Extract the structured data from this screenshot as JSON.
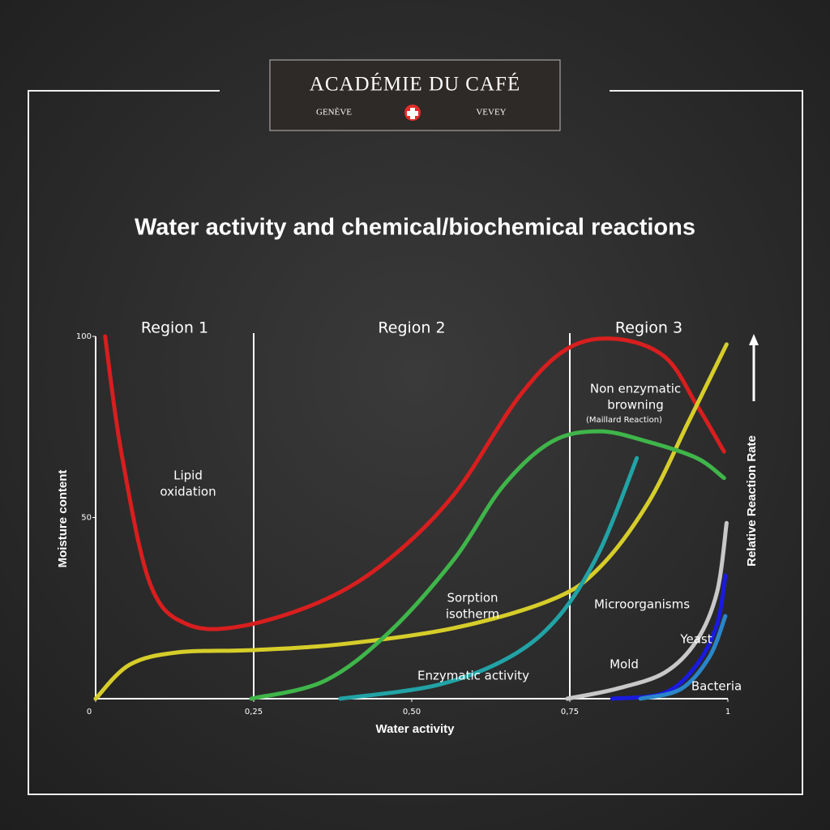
{
  "header": {
    "brand": "ACADÉMIE DU CAFÉ",
    "left_place": "GENÈVE",
    "right_place": "VEVEY"
  },
  "chart_data": {
    "type": "line",
    "title": "Water activity and chemical/biochemical reactions",
    "x_label": "Water activity",
    "y_label": "Moisture content",
    "y2_label": "Relative Reaction Rate",
    "xlim": [
      0,
      1
    ],
    "ylim": [
      0,
      100
    ],
    "xticks": [
      0,
      {
        "value": 0.25,
        "label": "0,25"
      },
      {
        "value": 0.5,
        "label": "0,50"
      },
      {
        "value": 0.75,
        "label": "0,75"
      },
      1
    ],
    "yticks": [
      50,
      100
    ],
    "regions": [
      {
        "label": "Region 1",
        "color": "#d8cc2c",
        "from": 0,
        "to": 0.25
      },
      {
        "label": "Region 2",
        "color": "#d42020",
        "from": 0.25,
        "to": 0.75
      },
      {
        "label": "Region 3",
        "color": "#27a3a8",
        "from": 0.75,
        "to": 1
      }
    ],
    "series": [
      {
        "color": "#d81e1e",
        "x": [
          0.015,
          0.041,
          0.086,
          0.144,
          0.233,
          0.362,
          0.464,
          0.567,
          0.669,
          0.746,
          0.823,
          0.9,
          0.951,
          0.994
        ],
        "values": [
          100,
          67.6,
          31.8,
          20.6,
          20.1,
          27.3,
          38.5,
          56.4,
          83.2,
          96.6,
          99.3,
          94.4,
          81,
          68.2
        ]
      },
      {
        "color": "#d6cd2a",
        "x": [
          0,
          0.054,
          0.131,
          0.246,
          0.387,
          0.567,
          0.721,
          0.797,
          0.874,
          0.938,
          0.998
        ],
        "values": [
          0,
          9.4,
          12.8,
          13.4,
          15,
          19.5,
          27.3,
          36.2,
          54.1,
          76.5,
          97.8
        ]
      },
      {
        "color": "#3fb54a",
        "x": [
          0.246,
          0.362,
          0.464,
          0.567,
          0.644,
          0.721,
          0.797,
          0.874,
          0.951,
          0.994
        ],
        "values": [
          0,
          4.9,
          18.3,
          38.5,
          58.6,
          70.9,
          73.8,
          70.9,
          66.4,
          60.9
        ]
      },
      {
        "color": "#21a3a6",
        "x": [
          0.387,
          0.541,
          0.656,
          0.733,
          0.797,
          0.856
        ],
        "values": [
          0,
          3.8,
          11.6,
          22.8,
          40.7,
          66.4
        ]
      },
      {
        "color": "#c8c8c8",
        "x": [
          0.746,
          0.823,
          0.9,
          0.951,
          0.983,
          0.998
        ],
        "values": [
          0,
          2.7,
          7.2,
          16.1,
          29.5,
          48.5
        ]
      },
      {
        "color": "#1a1ae0",
        "x": [
          0.817,
          0.9,
          0.951,
          0.983,
          0.996
        ],
        "values": [
          0,
          1.6,
          9.4,
          20.6,
          34
        ]
      },
      {
        "color": "#2a86c8",
        "x": [
          0.862,
          0.926,
          0.971,
          0.996
        ],
        "values": [
          0,
          2.7,
          11.6,
          22.8
        ]
      }
    ],
    "annotations": [
      [
        "Lipid",
        "oxidation"
      ],
      [
        "Non enzymatic",
        "browning"
      ],
      [
        "(Maillard Reaction)"
      ],
      [
        "Sorption",
        "isotherm"
      ],
      [
        "Microorganisms"
      ],
      [
        "Enzymatic activity"
      ],
      [
        "Mold"
      ],
      [
        "Yeast"
      ],
      [
        "Bacteria"
      ]
    ]
  }
}
